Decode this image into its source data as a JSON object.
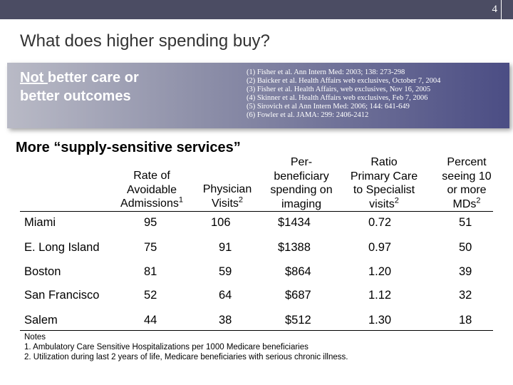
{
  "slide_number": "4",
  "title": "What does higher spending buy?",
  "callout": {
    "line1_underlined": "Not ",
    "line1_rest": "better care or",
    "line2": "better outcomes",
    "references": [
      "(1) Fisher et al. Ann Intern Med: 2003; 138: 273-298",
      "(2) Baicker et al. Health Affairs web exclusives, October 7, 2004",
      "(3) Fisher et al. Health Affairs, web exclusives, Nov 16, 2005",
      "(4) Skinner et al. Health Affairs web exclusives, Feb 7, 2006",
      "(5) Sirovich et al Ann Intern Med: 2006; 144: 641-649",
      "(6) Fowler et al. JAMA: 299: 2406-2412"
    ]
  },
  "subtitle": "More “supply-sensitive services”",
  "table": {
    "headers": [
      {
        "lines": [
          "Rate of",
          "Avoidable",
          "Admissions"
        ],
        "sup": "1"
      },
      {
        "lines": [
          "Physician",
          "Visits"
        ],
        "sup": "2"
      },
      {
        "lines": [
          "Per-",
          "beneficiary",
          "spending on",
          "imaging"
        ],
        "sup": ""
      },
      {
        "lines": [
          "Ratio",
          "Primary Care",
          "to Specialist",
          "visits"
        ],
        "sup": "2"
      },
      {
        "lines": [
          "Percent",
          "seeing 10",
          "or more",
          "MDs"
        ],
        "sup": "2"
      }
    ],
    "rows": [
      [
        "Miami",
        "95",
        "106",
        "$1434",
        "0.72",
        "51"
      ],
      [
        "E. Long Island",
        "75",
        "91",
        "$1388",
        "0.97",
        "50"
      ],
      [
        "Boston",
        "81",
        "59",
        "$864",
        "1.20",
        "39"
      ],
      [
        "San Francisco",
        "52",
        "64",
        "$687",
        "1.12",
        "32"
      ],
      [
        "Salem",
        "44",
        "38",
        "$512",
        "1.30",
        "18"
      ]
    ]
  },
  "notes": {
    "heading": "Notes",
    "items": [
      "1. Ambulatory Care Sensitive Hospitalizations per 1000 Medicare beneficiaries",
      "2. Utilization during last 2 years of life, Medicare beneficiaries with serious chronic illness."
    ]
  }
}
